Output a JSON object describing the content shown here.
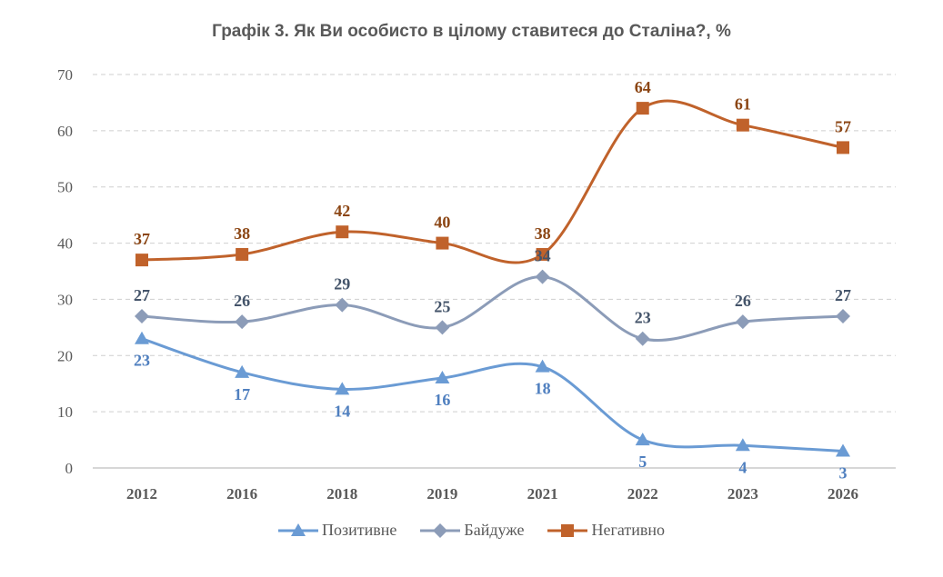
{
  "chart_data": {
    "type": "line",
    "title": "Графік 3. Як Ви особисто в цілому ставитеся до Сталіна?, %",
    "categories": [
      "2012",
      "2016",
      "2018",
      "2019",
      "2021",
      "2022",
      "2023",
      "2026"
    ],
    "ylim": [
      0,
      70
    ],
    "yticks": [
      0,
      10,
      20,
      30,
      40,
      50,
      60,
      70
    ],
    "grid": true,
    "legend_position": "bottom",
    "series": [
      {
        "name": "Позитивне",
        "values": [
          23,
          17,
          14,
          16,
          18,
          5,
          4,
          3
        ],
        "color": "#6a9bd4",
        "marker": "triangle",
        "label_position": "below"
      },
      {
        "name": "Байдуже",
        "values": [
          27,
          26,
          29,
          25,
          34,
          23,
          26,
          27
        ],
        "color": "#8c9cb8",
        "marker": "diamond",
        "label_position": "above"
      },
      {
        "name": "Негативно",
        "values": [
          37,
          38,
          42,
          40,
          38,
          64,
          61,
          57
        ],
        "color": "#c0622b",
        "marker": "square",
        "label_position": "above"
      }
    ],
    "label_colors": {
      "Позитивне": "#4f7fbf",
      "Байдуже": "#44546a",
      "Негативно": "#8b4513"
    }
  }
}
